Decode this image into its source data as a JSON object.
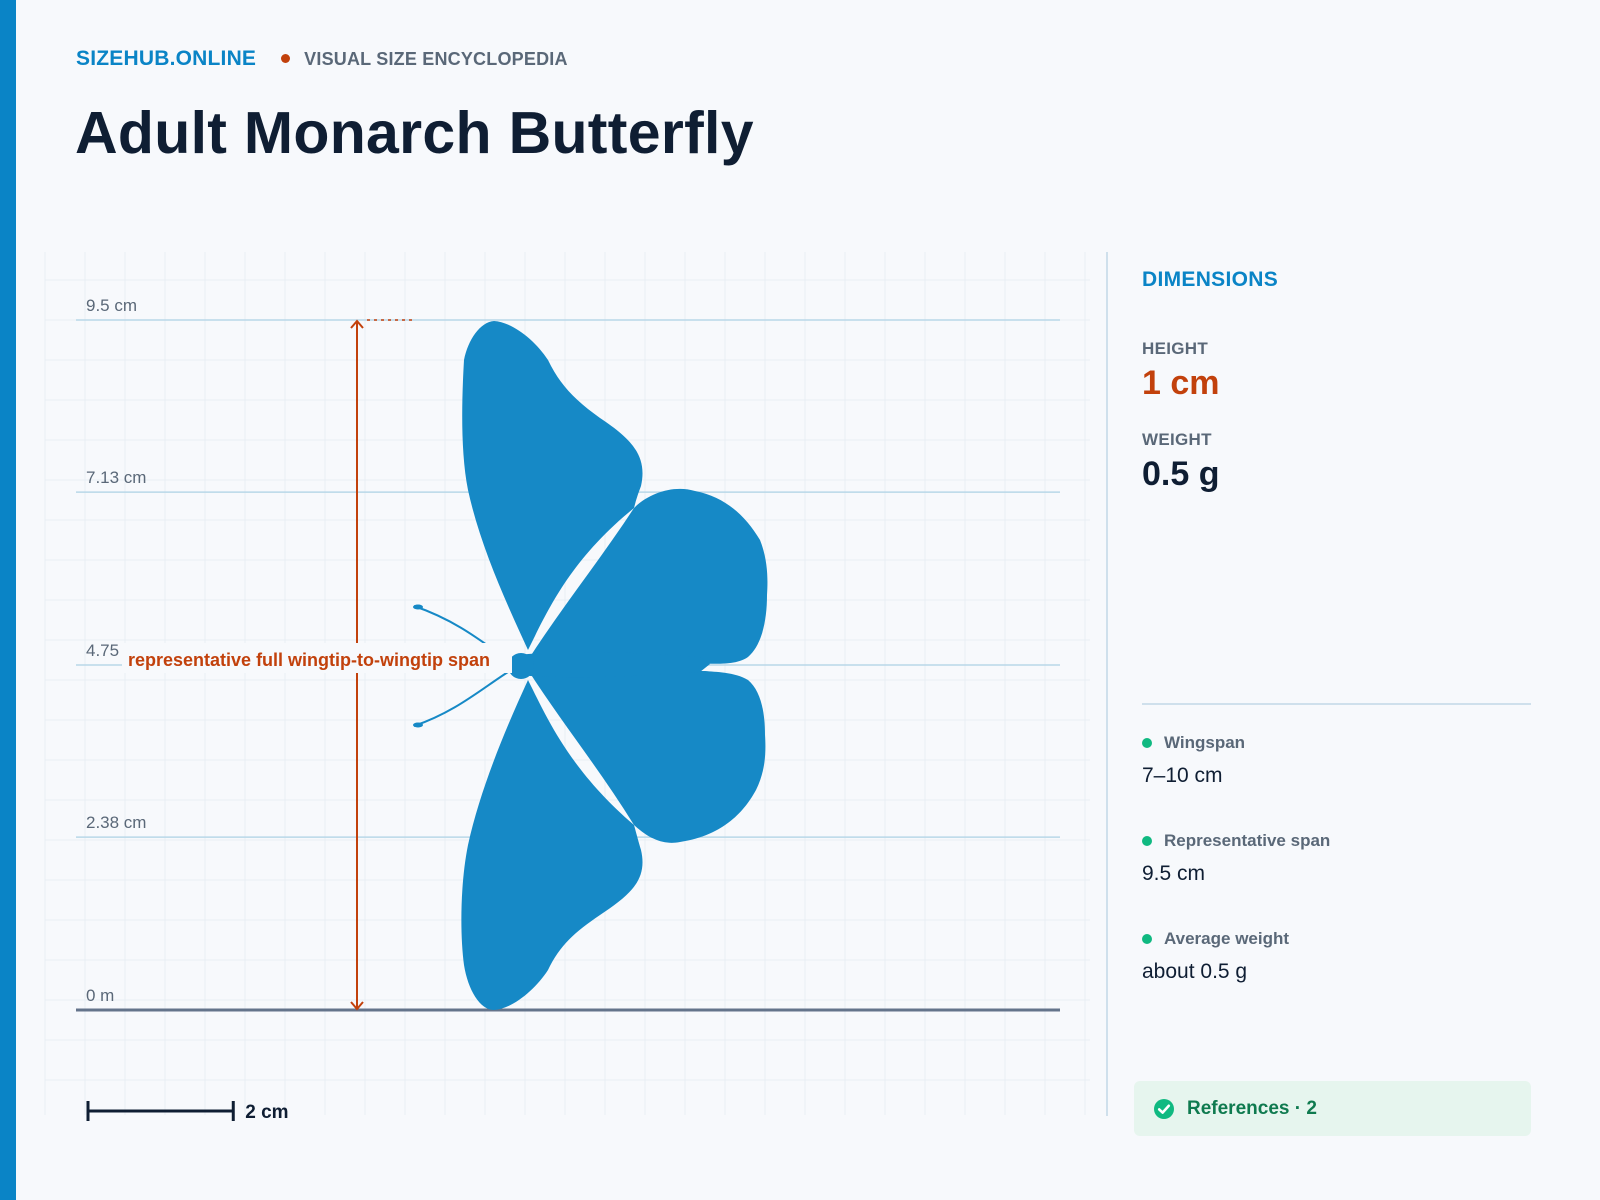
{
  "brand": {
    "name": "SIZEHUB.ONLINE",
    "tagline": "VISUAL SIZE ENCYCLOPEDIA"
  },
  "page": {
    "title": "Adult Monarch Butterfly"
  },
  "colors": {
    "accent": "#0a84c6",
    "silhouette": "#1689c6",
    "measure": "#c2410c",
    "positive": "#10b981",
    "text_dark": "#0f1e33",
    "text_muted": "#5a6878"
  },
  "chart_data": {
    "type": "size-comparison",
    "unit": "cm",
    "axis_range": [
      0,
      9.5
    ],
    "tick_labels": [
      "0 m",
      "2.38 cm",
      "4.75 cm",
      "7.13 cm",
      "9.5 cm"
    ],
    "tick_values": [
      0,
      2.38,
      4.75,
      7.13,
      9.5
    ],
    "subject_span": 9.5,
    "measurement_label": "representative full wingtip-to-wingtip span",
    "scale_bar_value": 2,
    "scale_bar_label": "2 cm",
    "silhouette_icon": "butterfly-silhouette-icon"
  },
  "panel": {
    "heading": "DIMENSIONS",
    "height_label": "HEIGHT",
    "height_value": "1 cm",
    "weight_label": "WEIGHT",
    "weight_value": "0.5 g",
    "facts": [
      {
        "label": "Wingspan",
        "value": "7–10 cm"
      },
      {
        "label": "Representative span",
        "value": "9.5 cm"
      },
      {
        "label": "Average weight",
        "value": "about 0.5 g"
      }
    ],
    "references": "References · 2",
    "references_icon": "check-circle-icon"
  }
}
